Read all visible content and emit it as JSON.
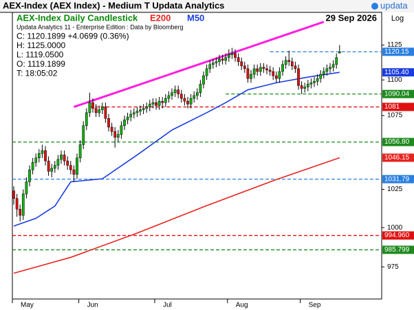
{
  "chart_data": {
    "type": "candlestick",
    "window_title": "AEX-Index (AEX Index) - Medium T  Updata Analytics",
    "brand": "updata",
    "title": "AEX-Index Daily Candlestick",
    "date": "29 Sep 2026",
    "scale_label": "Log",
    "info": [
      "Updata Analytics 11 - Enterprise Edition : Data by Bloomberg",
      "C: 1120.1899  +4.0699 (0.36%)",
      "H: 1125.0000",
      "L: 1119.0500",
      "O: 1119.1899",
      "T: 18:05:02"
    ],
    "log_scale": true,
    "up_color": "#12b312",
    "down_color": "#e01010",
    "ylim": [
      955,
      1149
    ],
    "yticks": [
      975,
      1000,
      1025,
      1075,
      1100,
      1125
    ],
    "categories": [
      "May",
      null,
      null,
      null,
      null,
      null,
      null,
      null,
      null,
      null,
      null,
      null,
      null,
      null,
      null,
      null,
      null,
      null,
      null,
      null,
      null,
      "Jun",
      null,
      null,
      null,
      null,
      null,
      null,
      null,
      null,
      null,
      null,
      null,
      null,
      null,
      null,
      null,
      null,
      null,
      null,
      null,
      null,
      null,
      null,
      null,
      "Jul",
      null,
      null,
      null,
      null,
      null,
      null,
      null,
      null,
      null,
      null,
      null,
      null,
      null,
      null,
      null,
      null,
      null,
      null,
      null,
      null,
      null,
      null,
      "Aug",
      null,
      null,
      null,
      null,
      null,
      null,
      null,
      null,
      null,
      null,
      null,
      null,
      null,
      null,
      null,
      null,
      null,
      null,
      null,
      null,
      null,
      null,
      "Sep",
      null,
      null,
      null,
      null,
      null,
      null,
      null,
      null,
      null,
      null,
      null,
      null
    ],
    "open": [
      1024,
      1019,
      1012,
      1008,
      1022,
      1030,
      1038,
      1043,
      1046,
      1049,
      1051,
      1044,
      1037,
      1039,
      1041,
      1045,
      1048,
      1044,
      1041,
      1038,
      1035,
      1046,
      1055,
      1068,
      1077,
      1084,
      1080,
      1077,
      1079,
      1081,
      1073,
      1067,
      1064,
      1060,
      1062,
      1068,
      1072,
      1074,
      1076,
      1077,
      1078,
      1079,
      1080,
      1081,
      1083,
      1084,
      1082,
      1085,
      1084,
      1087,
      1089,
      1091,
      1093,
      1090,
      1087,
      1085,
      1083,
      1087,
      1089,
      1091,
      1097,
      1103,
      1108,
      1111,
      1112,
      1113,
      1115,
      1114,
      1116,
      1118,
      1119,
      1116,
      1113,
      1110,
      1108,
      1101,
      1104,
      1108,
      1106,
      1109,
      1108,
      1107,
      1106,
      1103,
      1101,
      1106,
      1111,
      1114,
      1113,
      1110,
      1108,
      1096,
      1094,
      1095,
      1097,
      1098,
      1099,
      1101,
      1104,
      1106,
      1108,
      1109,
      1111,
      1119.19
    ],
    "high": [
      1027,
      1022,
      1015,
      1025,
      1033,
      1041,
      1046,
      1049,
      1052,
      1055,
      1054,
      1047,
      1042,
      1044,
      1048,
      1051,
      1051,
      1047,
      1044,
      1041,
      1049,
      1058,
      1071,
      1080,
      1091,
      1087,
      1083,
      1082,
      1084,
      1084,
      1076,
      1070,
      1067,
      1065,
      1071,
      1075,
      1077,
      1079,
      1080,
      1081,
      1082,
      1083,
      1084,
      1086,
      1087,
      1087,
      1088,
      1088,
      1090,
      1092,
      1094,
      1096,
      1096,
      1093,
      1090,
      1088,
      1090,
      1092,
      1094,
      1100,
      1106,
      1111,
      1114,
      1115,
      1116,
      1118,
      1118,
      1119,
      1122,
      1123,
      1122,
      1119,
      1116,
      1113,
      1111,
      1107,
      1111,
      1111,
      1112,
      1112,
      1111,
      1110,
      1109,
      1106,
      1109,
      1114,
      1117,
      1121,
      1116,
      1113,
      1111,
      1099,
      1098,
      1100,
      1101,
      1102,
      1104,
      1107,
      1109,
      1111,
      1112,
      1114,
      1119,
      1125
    ],
    "low": [
      1015,
      1007,
      1004,
      1005,
      1019,
      1027,
      1035,
      1040,
      1043,
      1046,
      1041,
      1034,
      1033,
      1036,
      1038,
      1042,
      1041,
      1038,
      1035,
      1030,
      1032,
      1043,
      1052,
      1065,
      1074,
      1077,
      1074,
      1074,
      1076,
      1070,
      1064,
      1061,
      1053,
      1057,
      1059,
      1065,
      1069,
      1071,
      1073,
      1074,
      1075,
      1076,
      1077,
      1078,
      1080,
      1079,
      1079,
      1080,
      1081,
      1084,
      1086,
      1088,
      1087,
      1084,
      1082,
      1080,
      1080,
      1084,
      1086,
      1088,
      1094,
      1100,
      1105,
      1108,
      1109,
      1110,
      1111,
      1111,
      1113,
      1115,
      1113,
      1110,
      1107,
      1105,
      1098,
      1098,
      1101,
      1103,
      1103,
      1105,
      1104,
      1103,
      1100,
      1098,
      1098,
      1103,
      1108,
      1110,
      1107,
      1105,
      1093,
      1090,
      1091,
      1092,
      1094,
      1095,
      1096,
      1098,
      1101,
      1103,
      1105,
      1106,
      1108,
      1119.05
    ],
    "close": [
      1019,
      1012,
      1008,
      1022,
      1030,
      1038,
      1043,
      1046,
      1049,
      1051,
      1044,
      1037,
      1039,
      1041,
      1045,
      1048,
      1044,
      1041,
      1038,
      1035,
      1046,
      1055,
      1068,
      1077,
      1084,
      1080,
      1077,
      1079,
      1081,
      1073,
      1067,
      1064,
      1060,
      1062,
      1068,
      1072,
      1074,
      1076,
      1077,
      1078,
      1079,
      1080,
      1081,
      1083,
      1084,
      1082,
      1085,
      1084,
      1087,
      1089,
      1091,
      1093,
      1090,
      1087,
      1085,
      1083,
      1087,
      1089,
      1091,
      1097,
      1103,
      1108,
      1111,
      1112,
      1113,
      1115,
      1114,
      1116,
      1118,
      1119,
      1116,
      1113,
      1110,
      1108,
      1101,
      1104,
      1108,
      1106,
      1109,
      1108,
      1107,
      1106,
      1103,
      1101,
      1106,
      1111,
      1114,
      1113,
      1110,
      1108,
      1096,
      1094,
      1095,
      1097,
      1098,
      1099,
      1101,
      1104,
      1106,
      1108,
      1109,
      1111,
      1116,
      1120.19
    ],
    "series": [
      {
        "name": "E200",
        "color": "#e8231e",
        "x": [
          0,
          18,
          39,
          61,
          83,
          103
        ],
        "values": [
          971,
          981,
          996.5,
          1014.3,
          1031.5,
          1046.15
        ]
      },
      {
        "name": "M50",
        "color": "#1a3de0",
        "x": [
          0,
          7,
          13,
          18,
          28,
          39,
          50,
          61,
          67,
          74,
          83,
          93,
          103
        ],
        "values": [
          1001,
          1006,
          1014,
          1030,
          1032,
          1048,
          1065,
          1077,
          1084,
          1093,
          1098,
          1102,
          1105.4
        ]
      }
    ],
    "trend_line": {
      "color": "#ff1ee0",
      "x": [
        19,
        98
      ],
      "values": [
        1081,
        1142
      ]
    },
    "levels": [
      {
        "value": 1120.15,
        "label": "1120.15",
        "color": "#2a7fe0",
        "from": 81
      },
      {
        "value": 1105.4,
        "label": "1105.40",
        "color": "#1a3de0",
        "from": null
      },
      {
        "value": 1090.04,
        "label": "1090.04",
        "color": "#1e8a1e",
        "from": 67
      },
      {
        "value": 1081,
        "label": "1081",
        "color": "#e01010",
        "from": 24
      },
      {
        "value": 1056.8,
        "label": "1056.80",
        "color": "#1e8a1e",
        "from": 0
      },
      {
        "value": 1046.15,
        "label": "1046.15",
        "color": "#e8231e",
        "from": null
      },
      {
        "value": 1031.79,
        "label": "1031.79",
        "color": "#2a7fe0",
        "from": 0
      },
      {
        "value": 994.96,
        "label": "994.960",
        "color": "#e01010",
        "from": 0
      },
      {
        "value": 985.799,
        "label": "985.799",
        "color": "#1e8a1e",
        "from": 0
      }
    ]
  }
}
